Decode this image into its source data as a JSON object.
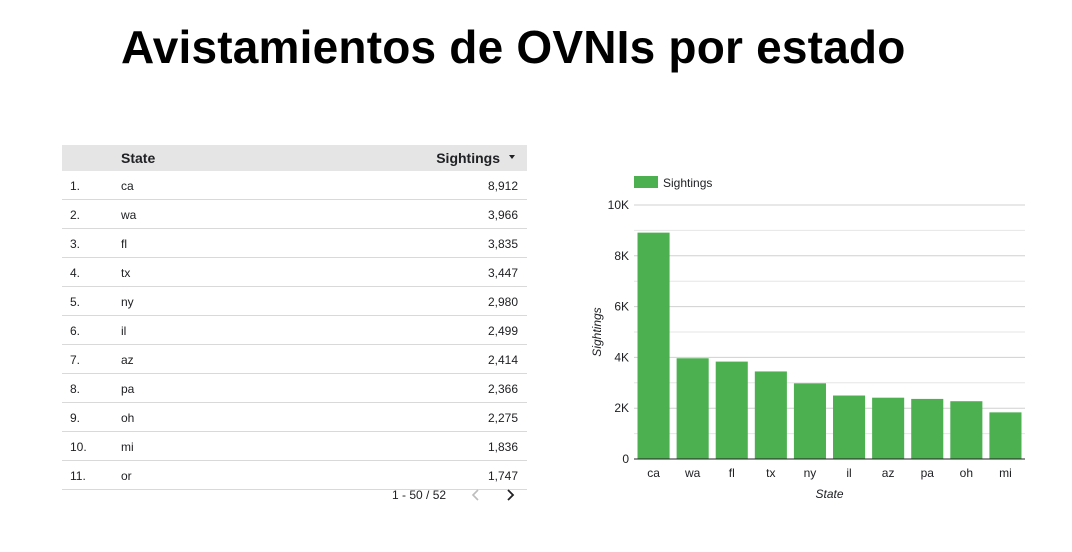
{
  "title": "Avistamientos de OVNIs por estado",
  "table": {
    "headers": {
      "state": "State",
      "sightings": "Sightings"
    },
    "rows": [
      {
        "idx": "1.",
        "state": "ca",
        "value": "8,912"
      },
      {
        "idx": "2.",
        "state": "wa",
        "value": "3,966"
      },
      {
        "idx": "3.",
        "state": "fl",
        "value": "3,835"
      },
      {
        "idx": "4.",
        "state": "tx",
        "value": "3,447"
      },
      {
        "idx": "5.",
        "state": "ny",
        "value": "2,980"
      },
      {
        "idx": "6.",
        "state": "il",
        "value": "2,499"
      },
      {
        "idx": "7.",
        "state": "az",
        "value": "2,414"
      },
      {
        "idx": "8.",
        "state": "pa",
        "value": "2,366"
      },
      {
        "idx": "9.",
        "state": "oh",
        "value": "2,275"
      },
      {
        "idx": "10.",
        "state": "mi",
        "value": "1,836"
      },
      {
        "idx": "11.",
        "state": "or",
        "value": "1,747"
      }
    ],
    "pagination": "1 - 50 / 52"
  },
  "chart_data": {
    "type": "bar",
    "categories": [
      "ca",
      "wa",
      "fl",
      "tx",
      "ny",
      "il",
      "az",
      "pa",
      "oh",
      "mi"
    ],
    "series": [
      {
        "name": "Sightings",
        "values": [
          8912,
          3966,
          3835,
          3447,
          2980,
          2499,
          2414,
          2366,
          2275,
          1836
        ],
        "color": "#4caf50"
      }
    ],
    "xlabel": "State",
    "ylabel": "Sightings",
    "ylim": [
      0,
      10000
    ],
    "yticks": [
      0,
      2000,
      4000,
      6000,
      8000,
      10000
    ],
    "ytick_labels": [
      "0",
      "2K",
      "4K",
      "6K",
      "8K",
      "10K"
    ],
    "grid": true,
    "legend": "top-left"
  }
}
